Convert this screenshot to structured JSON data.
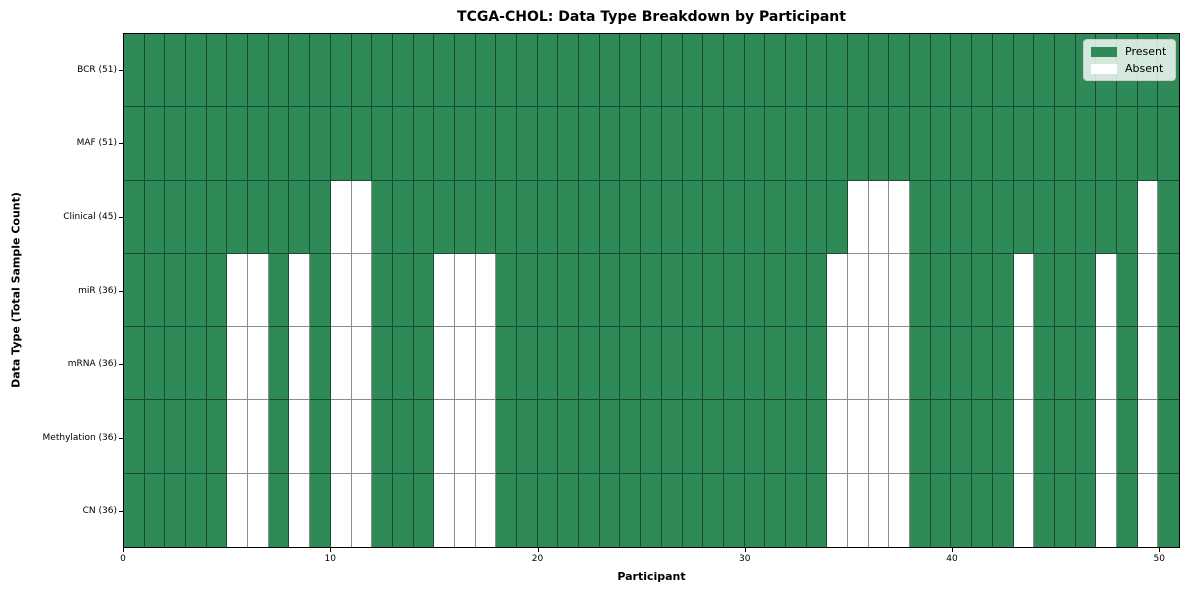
{
  "chart_data": {
    "type": "heatmap",
    "title": "TCGA-CHOL: Data Type Breakdown by Participant",
    "xlabel": "Participant",
    "ylabel": "Data Type (Total Sample Count)",
    "n_participants": 51,
    "x_range": [
      0,
      51
    ],
    "x_ticks": [
      0,
      10,
      20,
      30,
      40,
      50
    ],
    "grid": true,
    "legend_position": "upper-right",
    "colors": {
      "present": "#2e8b57",
      "absent": "#ffffff",
      "cell_border": "rgba(0,0,0,0.45)",
      "axis": "#000000"
    },
    "legend": [
      {
        "label": "Present",
        "color": "#2e8b57"
      },
      {
        "label": "Absent",
        "color": "#ffffff"
      }
    ],
    "rows": [
      {
        "label": "BCR (51)",
        "data_type": "BCR",
        "present_count": 51,
        "absent_participants": []
      },
      {
        "label": "MAF (51)",
        "data_type": "MAF",
        "present_count": 51,
        "absent_participants": []
      },
      {
        "label": "Clinical (45)",
        "data_type": "Clinical",
        "present_count": 45,
        "absent_participants": [
          10,
          11,
          35,
          36,
          37,
          49
        ]
      },
      {
        "label": "miR (36)",
        "data_type": "miR",
        "present_count": 36,
        "absent_participants": [
          5,
          6,
          8,
          10,
          11,
          15,
          16,
          17,
          34,
          35,
          36,
          37,
          43,
          47,
          49
        ]
      },
      {
        "label": "mRNA (36)",
        "data_type": "mRNA",
        "present_count": 36,
        "absent_participants": [
          5,
          6,
          8,
          10,
          11,
          15,
          16,
          17,
          34,
          35,
          36,
          37,
          43,
          47,
          49
        ]
      },
      {
        "label": "Methylation (36)",
        "data_type": "Methylation",
        "present_count": 36,
        "absent_participants": [
          5,
          6,
          8,
          10,
          11,
          15,
          16,
          17,
          34,
          35,
          36,
          37,
          43,
          47,
          49
        ]
      },
      {
        "label": "CN (36)",
        "data_type": "CN",
        "present_count": 36,
        "absent_participants": [
          5,
          6,
          8,
          10,
          11,
          15,
          16,
          17,
          34,
          35,
          36,
          37,
          43,
          47,
          49
        ]
      }
    ]
  }
}
